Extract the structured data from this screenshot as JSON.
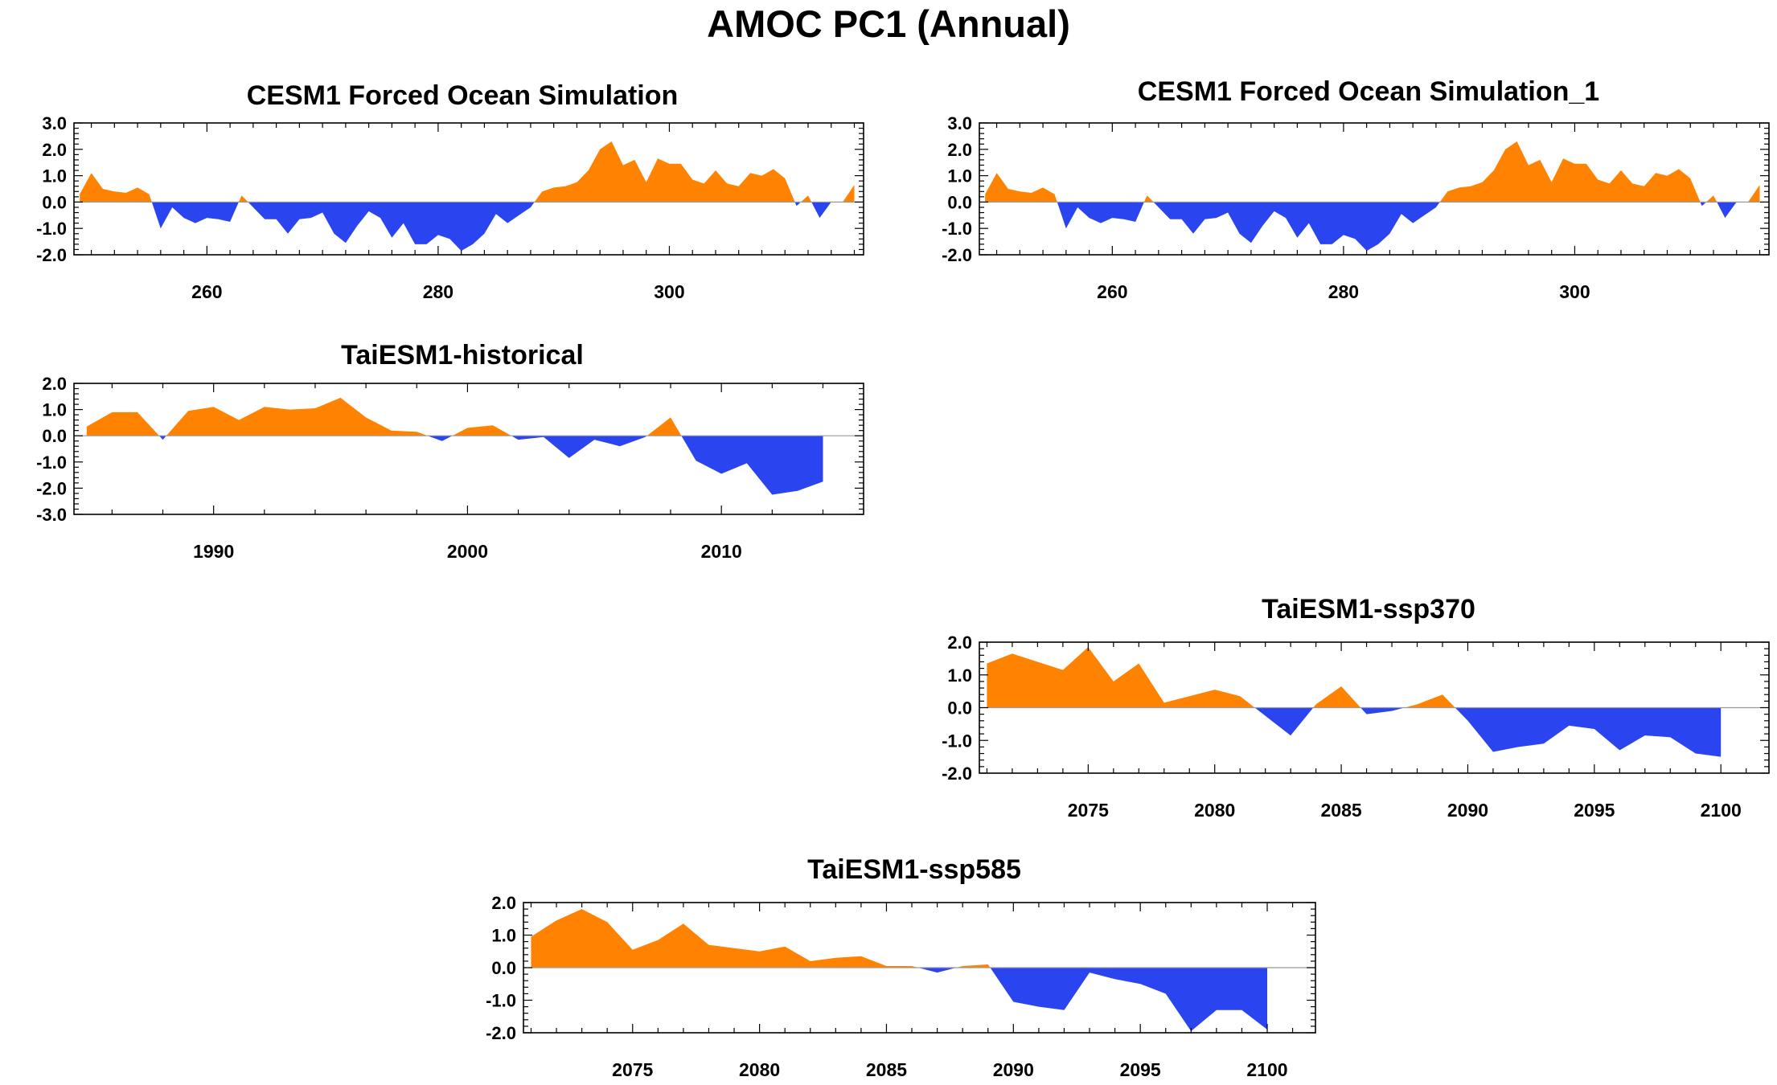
{
  "page_title": "AMOC PC1 (Annual)",
  "colors": {
    "positive": "#ff8200",
    "negative": "#2a44f0",
    "frame": "#000000",
    "zero_line": "#9a9a9a"
  },
  "chart_data": [
    {
      "type": "area",
      "title": "CESM1 Forced Ocean Simulation",
      "x": [
        249,
        250,
        251,
        252,
        253,
        254,
        255,
        256,
        257,
        258,
        259,
        260,
        261,
        262,
        263,
        264,
        265,
        266,
        267,
        268,
        269,
        270,
        271,
        272,
        273,
        274,
        275,
        276,
        277,
        278,
        279,
        280,
        281,
        282,
        283,
        284,
        285,
        286,
        287,
        288,
        289,
        290,
        291,
        292,
        293,
        294,
        295,
        296,
        297,
        298,
        299,
        300,
        301,
        302,
        303,
        304,
        305,
        306,
        307,
        308,
        309,
        310,
        311,
        312,
        313,
        314,
        315,
        316
      ],
      "values": [
        0.3,
        1.1,
        0.5,
        0.4,
        0.35,
        0.55,
        0.3,
        -1.0,
        -0.2,
        -0.6,
        -0.8,
        -0.6,
        -0.65,
        -0.75,
        0.25,
        -0.2,
        -0.65,
        -0.65,
        -1.2,
        -0.65,
        -0.6,
        -0.4,
        -1.2,
        -1.55,
        -0.9,
        -0.35,
        -0.6,
        -1.35,
        -0.8,
        -1.6,
        -1.6,
        -1.25,
        -1.4,
        -1.85,
        -1.6,
        -1.2,
        -0.45,
        -0.8,
        -0.5,
        -0.2,
        0.4,
        0.55,
        0.6,
        0.75,
        1.2,
        2.0,
        2.3,
        1.4,
        1.6,
        0.75,
        1.65,
        1.45,
        1.45,
        0.85,
        0.7,
        1.2,
        0.7,
        0.6,
        1.1,
        1.0,
        1.25,
        0.9,
        -0.15,
        0.25,
        -0.6,
        0.0,
        0.0,
        0.65
      ],
      "ylim": [
        -2.0,
        3.0
      ],
      "xlim": [
        248.5,
        316.8
      ],
      "yticks": [
        "3.0",
        "2.0",
        "1.0",
        "0.0",
        "-1.0",
        "-2.0"
      ],
      "xticks": [
        "260",
        "280",
        "300"
      ]
    },
    {
      "type": "area",
      "title": "CESM1 Forced Ocean Simulation_1",
      "x": [
        249,
        250,
        251,
        252,
        253,
        254,
        255,
        256,
        257,
        258,
        259,
        260,
        261,
        262,
        263,
        264,
        265,
        266,
        267,
        268,
        269,
        270,
        271,
        272,
        273,
        274,
        275,
        276,
        277,
        278,
        279,
        280,
        281,
        282,
        283,
        284,
        285,
        286,
        287,
        288,
        289,
        290,
        291,
        292,
        293,
        294,
        295,
        296,
        297,
        298,
        299,
        300,
        301,
        302,
        303,
        304,
        305,
        306,
        307,
        308,
        309,
        310,
        311,
        312,
        313,
        314,
        315,
        316
      ],
      "values": [
        0.3,
        1.1,
        0.5,
        0.4,
        0.35,
        0.55,
        0.3,
        -1.0,
        -0.2,
        -0.6,
        -0.8,
        -0.6,
        -0.65,
        -0.75,
        0.25,
        -0.2,
        -0.65,
        -0.65,
        -1.2,
        -0.65,
        -0.6,
        -0.4,
        -1.2,
        -1.55,
        -0.9,
        -0.35,
        -0.6,
        -1.35,
        -0.8,
        -1.6,
        -1.6,
        -1.25,
        -1.4,
        -1.85,
        -1.6,
        -1.2,
        -0.45,
        -0.8,
        -0.5,
        -0.2,
        0.4,
        0.55,
        0.6,
        0.75,
        1.2,
        2.0,
        2.3,
        1.4,
        1.6,
        0.75,
        1.65,
        1.45,
        1.45,
        0.85,
        0.7,
        1.2,
        0.7,
        0.6,
        1.1,
        1.0,
        1.25,
        0.9,
        -0.15,
        0.25,
        -0.6,
        0.0,
        0.0,
        0.65
      ],
      "ylim": [
        -2.0,
        3.0
      ],
      "xlim": [
        248.5,
        316.8
      ],
      "yticks": [
        "3.0",
        "2.0",
        "1.0",
        "0.0",
        "-1.0",
        "-2.0"
      ],
      "xticks": [
        "260",
        "280",
        "300"
      ]
    },
    {
      "type": "area",
      "title": "TaiESM1-historical",
      "x": [
        1985,
        1986,
        1987,
        1988,
        1989,
        1990,
        1991,
        1992,
        1993,
        1994,
        1995,
        1996,
        1997,
        1998,
        1999,
        2000,
        2001,
        2002,
        2003,
        2004,
        2005,
        2006,
        2007,
        2008,
        2009,
        2010,
        2011,
        2012,
        2013,
        2014
      ],
      "values": [
        0.35,
        0.9,
        0.9,
        -0.15,
        0.95,
        1.1,
        0.6,
        1.1,
        1.0,
        1.05,
        1.45,
        0.7,
        0.2,
        0.15,
        -0.2,
        0.3,
        0.4,
        -0.15,
        -0.05,
        -0.85,
        -0.15,
        -0.4,
        -0.05,
        0.7,
        -0.95,
        -1.45,
        -1.05,
        -2.25,
        -2.1,
        -1.75
      ],
      "ylim": [
        -3.0,
        2.0
      ],
      "xlim": [
        1984.5,
        2015.6
      ],
      "yticks": [
        "2.0",
        "1.0",
        "0.0",
        "-1.0",
        "-2.0",
        "-3.0"
      ],
      "xticks": [
        "1990",
        "2000",
        "2010"
      ]
    },
    {
      "type": "area",
      "title": "TaiESM1-ssp370",
      "x": [
        2071,
        2072,
        2073,
        2074,
        2075,
        2076,
        2077,
        2078,
        2079,
        2080,
        2081,
        2082,
        2083,
        2084,
        2085,
        2086,
        2087,
        2088,
        2089,
        2090,
        2091,
        2092,
        2093,
        2094,
        2095,
        2096,
        2097,
        2098,
        2099,
        2100
      ],
      "values": [
        1.35,
        1.65,
        1.4,
        1.15,
        1.85,
        0.8,
        1.35,
        0.15,
        0.35,
        0.55,
        0.35,
        -0.25,
        -0.85,
        0.1,
        0.65,
        -0.2,
        -0.1,
        0.1,
        0.4,
        -0.4,
        -1.35,
        -1.2,
        -1.1,
        -0.55,
        -0.65,
        -1.3,
        -0.85,
        -0.9,
        -1.4,
        -1.5
      ],
      "ylim": [
        -2.0,
        2.0
      ],
      "xlim": [
        2070.7,
        2101.9
      ],
      "yticks": [
        "2.0",
        "1.0",
        "0.0",
        "-1.0",
        "-2.0"
      ],
      "xticks": [
        "2075",
        "2080",
        "2085",
        "2090",
        "2095",
        "2100"
      ]
    },
    {
      "type": "area",
      "title": "TaiESM1-ssp585",
      "x": [
        2071,
        2072,
        2073,
        2074,
        2075,
        2076,
        2077,
        2078,
        2079,
        2080,
        2081,
        2082,
        2083,
        2084,
        2085,
        2086,
        2087,
        2088,
        2089,
        2090,
        2091,
        2092,
        2093,
        2094,
        2095,
        2096,
        2097,
        2098,
        2099,
        2100
      ],
      "values": [
        0.95,
        1.45,
        1.8,
        1.4,
        0.55,
        0.85,
        1.35,
        0.7,
        0.6,
        0.5,
        0.65,
        0.2,
        0.3,
        0.35,
        0.05,
        0.05,
        -0.15,
        0.05,
        0.1,
        -1.05,
        -1.2,
        -1.3,
        -0.15,
        -0.35,
        -0.5,
        -0.8,
        -1.95,
        -1.3,
        -1.3,
        -1.9
      ],
      "ylim": [
        -2.0,
        2.0
      ],
      "xlim": [
        2070.7,
        2101.9
      ],
      "yticks": [
        "2.0",
        "1.0",
        "0.0",
        "-1.0",
        "-2.0"
      ],
      "xticks": [
        "2075",
        "2080",
        "2085",
        "2090",
        "2095",
        "2100"
      ]
    }
  ]
}
